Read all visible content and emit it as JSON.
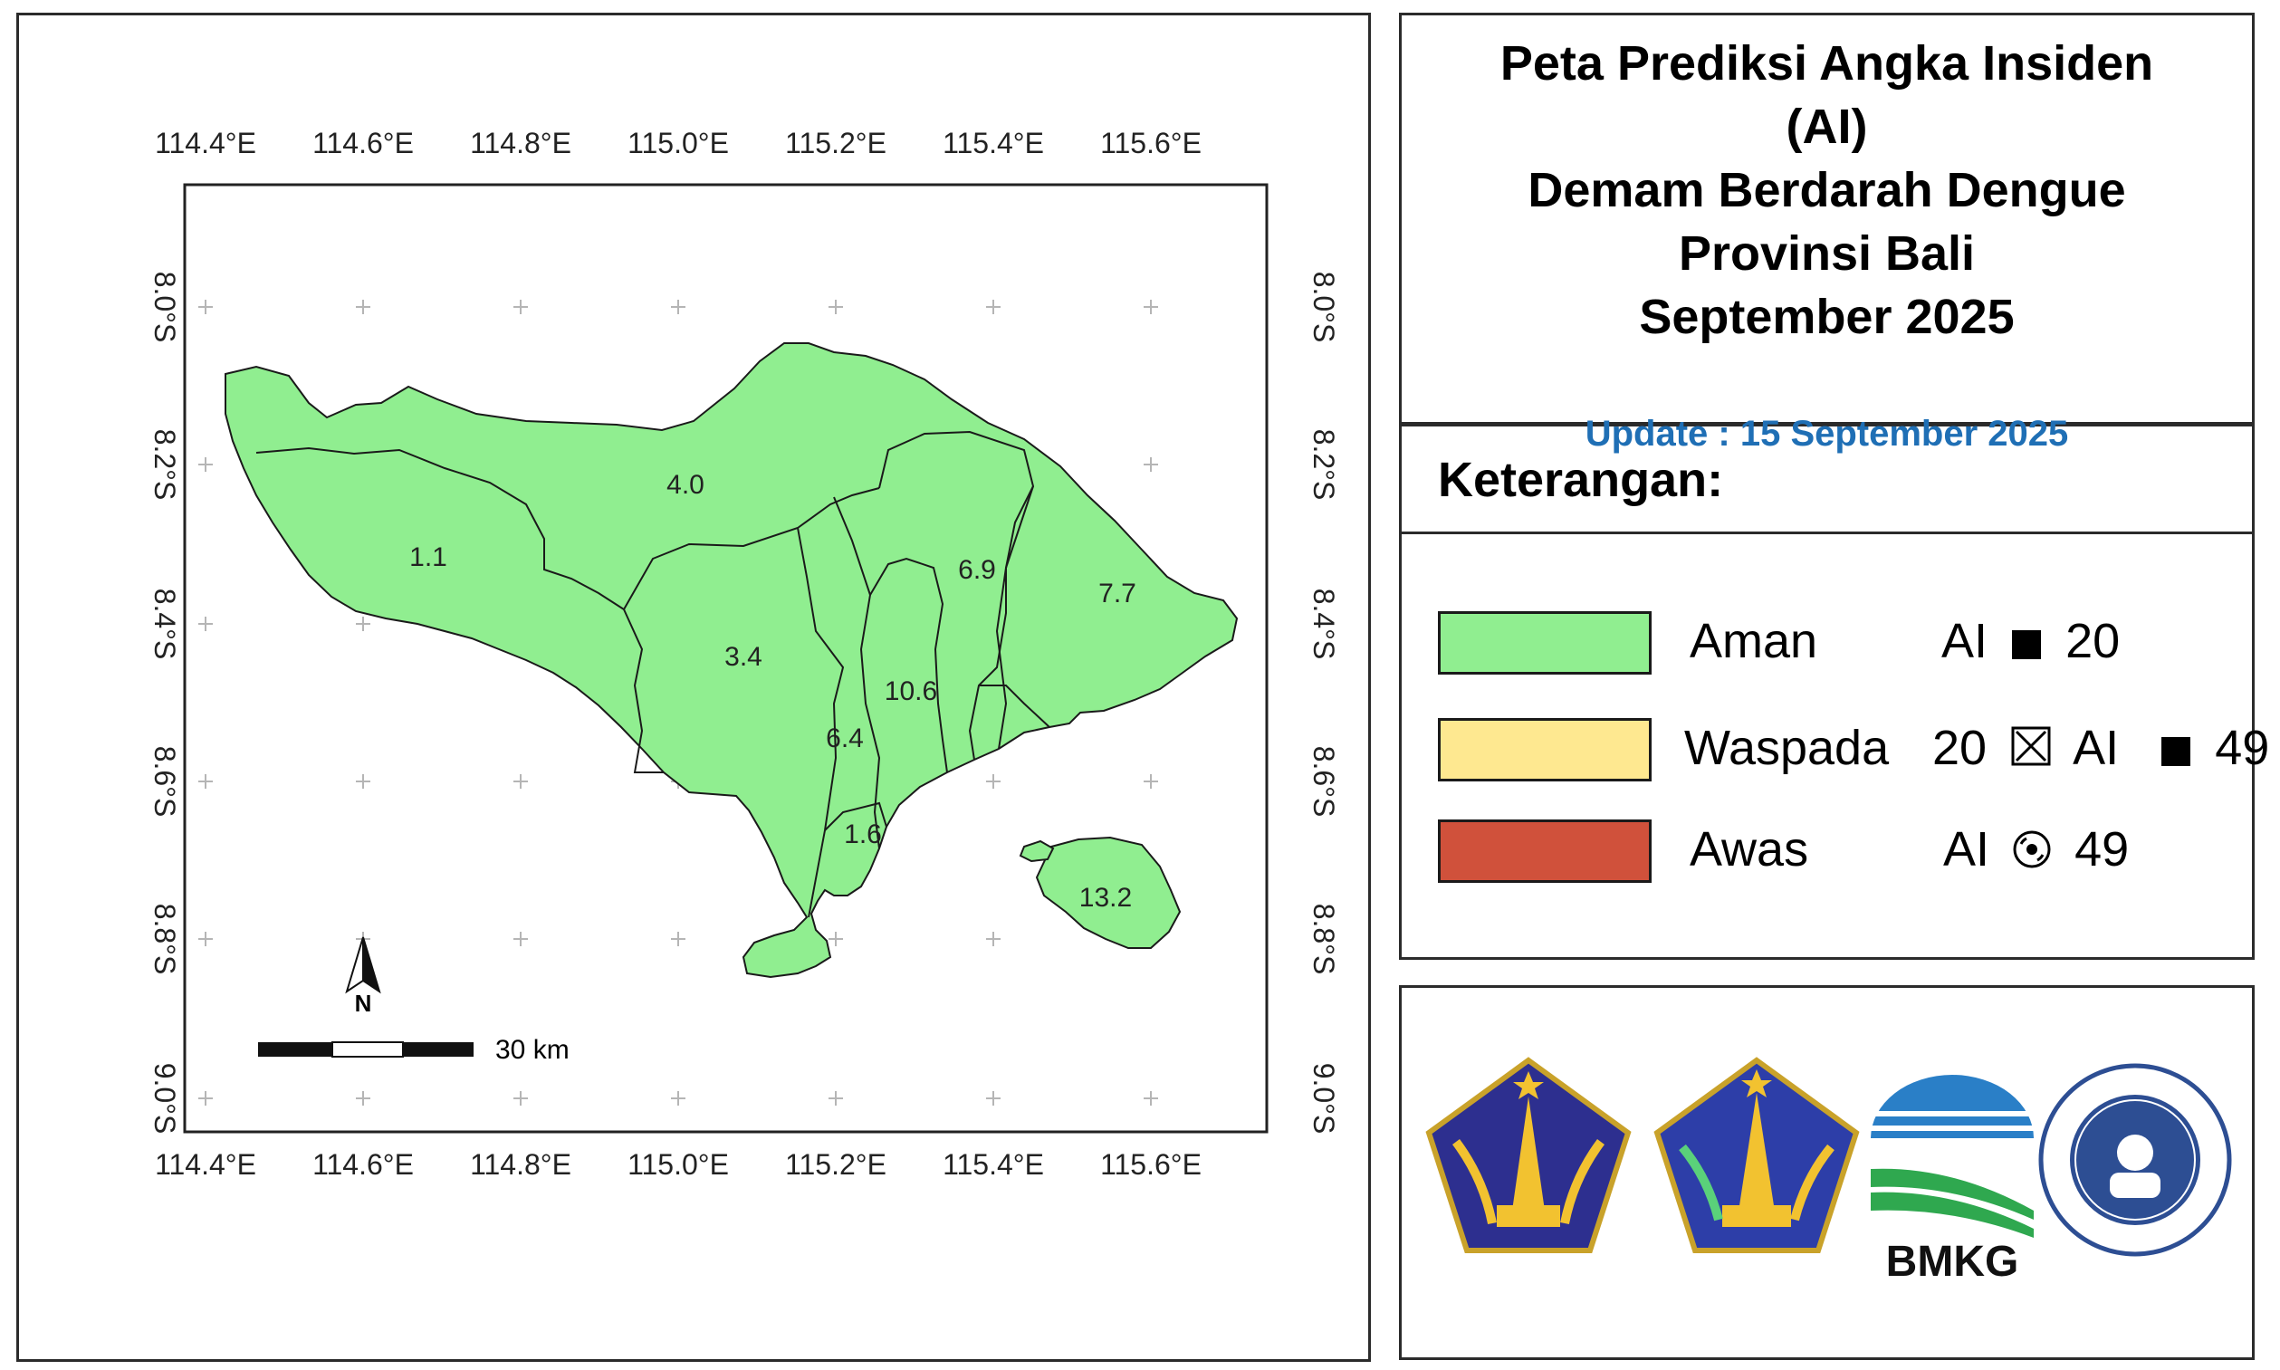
{
  "title": {
    "lines": [
      "Peta Prediksi Angka Insiden",
      "(AI)",
      "Demam Berdarah Dengue",
      "Provinsi Bali",
      "September 2025"
    ]
  },
  "update_text": "Update : 15 September 2025",
  "legend": {
    "heading": "Keterangan:",
    "items": [
      {
        "label": "Aman",
        "range_left": "AI",
        "symbol": "filled-square-icon",
        "range_right": "20",
        "color": "#90ee90"
      },
      {
        "label": "Waspada",
        "range_prefix": "20",
        "symbol1": "boxed-x-icon",
        "range_mid": "AI",
        "symbol2": "filled-square-icon",
        "range_right": "49",
        "color": "#fee890"
      },
      {
        "label": "Awas",
        "range_left": "AI",
        "symbol": "disc-icon",
        "range_right": "49",
        "color": "#d0513b"
      }
    ]
  },
  "map": {
    "fill_color": "#90ee90",
    "longitude_labels": [
      "114.4°E",
      "114.6°E",
      "114.8°E",
      "115.0°E",
      "115.2°E",
      "115.4°E",
      "115.6°E"
    ],
    "latitude_labels": [
      "8.0°S",
      "8.2°S",
      "8.4°S",
      "8.6°S",
      "8.8°S",
      "9.0°S"
    ],
    "regions": [
      {
        "value": "1.1"
      },
      {
        "value": "4.0"
      },
      {
        "value": "3.4"
      },
      {
        "value": "6.9"
      },
      {
        "value": "7.7"
      },
      {
        "value": "10.6"
      },
      {
        "value": "6.4"
      },
      {
        "value": "1.6"
      },
      {
        "value": "13.2"
      }
    ],
    "north_label": "N",
    "scale_label": "30 km"
  },
  "logos": [
    {
      "name": "bali-province-emblem-1"
    },
    {
      "name": "bali-province-emblem-2"
    },
    {
      "name": "bmkg-logo",
      "text": "BMKG"
    },
    {
      "name": "itb-seal"
    }
  ]
}
